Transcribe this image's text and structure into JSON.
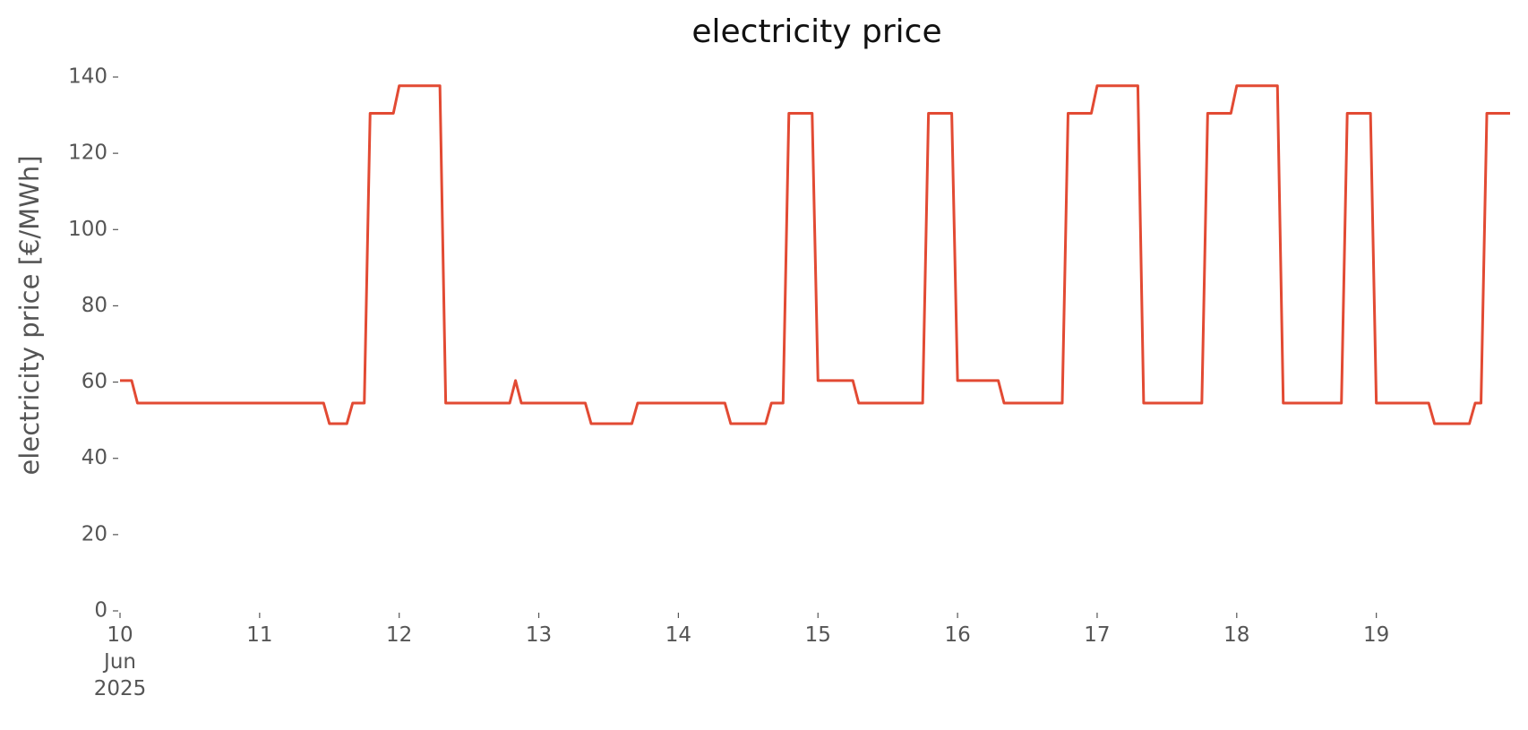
{
  "chart_data": {
    "type": "line",
    "title": "electricity price",
    "y_label": "electricity price [€/MWh]",
    "x": [
      10,
      10.0833,
      10.125,
      11.4583,
      11.5,
      11.625,
      11.6667,
      11.75,
      11.7917,
      11.9583,
      12,
      12.2917,
      12.3333,
      12.7917,
      12.8333,
      12.875,
      13.3333,
      13.375,
      13.6667,
      13.7083,
      14.3333,
      14.375,
      14.625,
      14.6667,
      14.75,
      14.7917,
      14.9583,
      15,
      15.25,
      15.2917,
      15.75,
      15.7917,
      15.9583,
      16,
      16.2917,
      16.3333,
      16.75,
      16.7917,
      16.9583,
      17,
      17.2917,
      17.3333,
      17.75,
      17.7917,
      17.9583,
      18,
      18.2917,
      18.3333,
      18.75,
      18.7917,
      18.9583,
      19,
      19.375,
      19.4167,
      19.6667,
      19.7083,
      19.75,
      19.7917,
      19.9583
    ],
    "series": [
      {
        "color": "#e24a33",
        "values": [
          60.4,
          60.4,
          54.5,
          54.5,
          49.1,
          49.1,
          54.5,
          54.5,
          130.5,
          130.5,
          137.7,
          137.7,
          54.5,
          54.5,
          60.4,
          54.5,
          54.5,
          49.1,
          49.1,
          54.5,
          54.5,
          49.1,
          49.1,
          54.5,
          54.5,
          130.5,
          130.5,
          60.4,
          60.4,
          54.5,
          54.5,
          130.5,
          130.5,
          60.4,
          60.4,
          54.5,
          54.5,
          130.5,
          130.5,
          137.7,
          137.7,
          54.5,
          54.5,
          130.5,
          130.5,
          137.7,
          137.7,
          54.5,
          54.5,
          130.5,
          130.5,
          54.5,
          54.5,
          49.1,
          49.1,
          54.5,
          54.5,
          130.5,
          130.5
        ]
      }
    ],
    "xlim": [
      10,
      19.9583
    ],
    "xticks": [
      {
        "value": 10,
        "label": "10\nJun\n2025"
      },
      11,
      12,
      13,
      14,
      15,
      16,
      17,
      18,
      19
    ],
    "ylim": [
      0,
      140
    ],
    "yticks": [
      0,
      20,
      40,
      60,
      80,
      100,
      120,
      140
    ]
  }
}
